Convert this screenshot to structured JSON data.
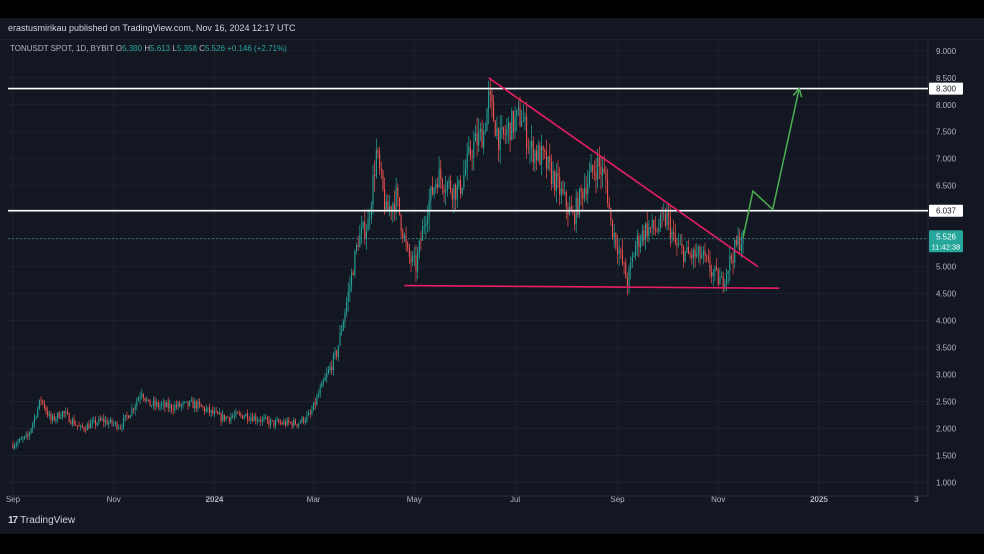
{
  "header": {
    "publisher": "erastusmirikau published on TradingView.com, Nov 16, 2024 12:17 UTC"
  },
  "symbol": {
    "name": "TONUSDT SPOT, 1D, BYBIT",
    "o_label": "O",
    "o": "5.380",
    "h_label": "H",
    "h": "5.613",
    "l_label": "L",
    "l": "5.358",
    "c_label": "C",
    "c": "5.526",
    "change": "+0.146 (+2.71%)"
  },
  "footer": {
    "brand": "TradingView"
  },
  "colors": {
    "background": "#131722",
    "up": "#26a69a",
    "down": "#ef5350",
    "trendline": "#e91e63",
    "projection": "#4caf50",
    "level": "#ffffff"
  },
  "chart_data": {
    "type": "candlestick",
    "yaxis_ticks": [
      "9.000",
      "8.500",
      "8.000",
      "7.500",
      "7.000",
      "6.500",
      "6.000",
      "5.500",
      "5.000",
      "4.500",
      "4.000",
      "3.500",
      "3.000",
      "2.500",
      "2.000",
      "1.500",
      "1.000"
    ],
    "ylim": [
      0.75,
      9.2
    ],
    "xaxis_ticks": [
      "Sep",
      "Nov",
      "2024",
      "Mar",
      "May",
      "Jul",
      "Sep",
      "Nov",
      "2025",
      "3"
    ],
    "xaxis_dates": [
      "2023-09-01",
      "2023-11-01",
      "2024-01-01",
      "2024-03-01",
      "2024-05-01",
      "2024-07-01",
      "2024-09-01",
      "2024-11-01",
      "2025-01-01",
      "2025-03-01"
    ],
    "xlim": [
      "2023-08-29",
      "2025-03-08"
    ],
    "horizontal_levels": [
      {
        "value": 8.3,
        "label": "8.300"
      },
      {
        "value": 6.037,
        "label": "6.037"
      }
    ],
    "last_price": {
      "value": 5.526,
      "label": "5.526",
      "countdown": "11:42:38"
    },
    "trendlines": [
      {
        "name": "descending resistance",
        "points": [
          [
            "2024-06-15",
            8.5
          ],
          [
            "2024-11-25",
            5.0
          ]
        ]
      },
      {
        "name": "horizontal support",
        "points": [
          [
            "2024-04-25",
            4.65
          ],
          [
            "2024-12-08",
            4.6
          ]
        ]
      }
    ],
    "projection_path": [
      [
        "2024-11-16",
        5.53
      ],
      [
        "2024-11-22",
        6.4
      ],
      [
        "2024-12-04",
        6.06
      ],
      [
        "2024-12-20",
        8.3
      ]
    ],
    "price_path": [
      [
        "2023-09-01",
        1.7
      ],
      [
        "2023-09-10",
        1.85
      ],
      [
        "2023-09-18",
        2.55
      ],
      [
        "2023-09-24",
        2.15
      ],
      [
        "2023-10-01",
        2.3
      ],
      [
        "2023-10-12",
        2.0
      ],
      [
        "2023-10-25",
        2.15
      ],
      [
        "2023-11-05",
        2.05
      ],
      [
        "2023-11-12",
        2.35
      ],
      [
        "2023-11-18",
        2.7
      ],
      [
        "2023-11-22",
        2.45
      ],
      [
        "2023-12-05",
        2.4
      ],
      [
        "2023-12-20",
        2.45
      ],
      [
        "2024-01-05",
        2.2
      ],
      [
        "2024-01-20",
        2.25
      ],
      [
        "2024-02-05",
        2.1
      ],
      [
        "2024-02-20",
        2.1
      ],
      [
        "2024-02-28",
        2.25
      ],
      [
        "2024-03-05",
        2.7
      ],
      [
        "2024-03-15",
        3.4
      ],
      [
        "2024-03-22",
        4.5
      ],
      [
        "2024-03-28",
        5.5
      ],
      [
        "2024-04-03",
        5.8
      ],
      [
        "2024-04-08",
        7.1
      ],
      [
        "2024-04-14",
        6.0
      ],
      [
        "2024-04-20",
        6.3
      ],
      [
        "2024-04-27",
        5.2
      ],
      [
        "2024-05-02",
        5.0
      ],
      [
        "2024-05-08",
        6.0
      ],
      [
        "2024-05-15",
        6.7
      ],
      [
        "2024-05-22",
        6.5
      ],
      [
        "2024-05-28",
        6.4
      ],
      [
        "2024-06-05",
        7.2
      ],
      [
        "2024-06-12",
        7.5
      ],
      [
        "2024-06-15",
        8.1
      ],
      [
        "2024-06-22",
        7.3
      ],
      [
        "2024-06-28",
        7.6
      ],
      [
        "2024-07-05",
        7.8
      ],
      [
        "2024-07-10",
        7.2
      ],
      [
        "2024-07-18",
        7.0
      ],
      [
        "2024-07-25",
        6.6
      ],
      [
        "2024-08-05",
        5.9
      ],
      [
        "2024-08-12",
        6.5
      ],
      [
        "2024-08-20",
        6.9
      ],
      [
        "2024-08-25",
        6.6
      ],
      [
        "2024-08-28",
        5.8
      ],
      [
        "2024-09-02",
        5.3
      ],
      [
        "2024-09-07",
        4.7
      ],
      [
        "2024-09-12",
        5.4
      ],
      [
        "2024-09-18",
        5.7
      ],
      [
        "2024-09-25",
        5.7
      ],
      [
        "2024-10-01",
        5.9
      ],
      [
        "2024-10-06",
        5.4
      ],
      [
        "2024-10-14",
        5.2
      ],
      [
        "2024-10-22",
        5.2
      ],
      [
        "2024-10-28",
        4.9
      ],
      [
        "2024-11-03",
        4.7
      ],
      [
        "2024-11-08",
        5.1
      ],
      [
        "2024-11-13",
        5.45
      ],
      [
        "2024-11-16",
        5.53
      ]
    ]
  }
}
